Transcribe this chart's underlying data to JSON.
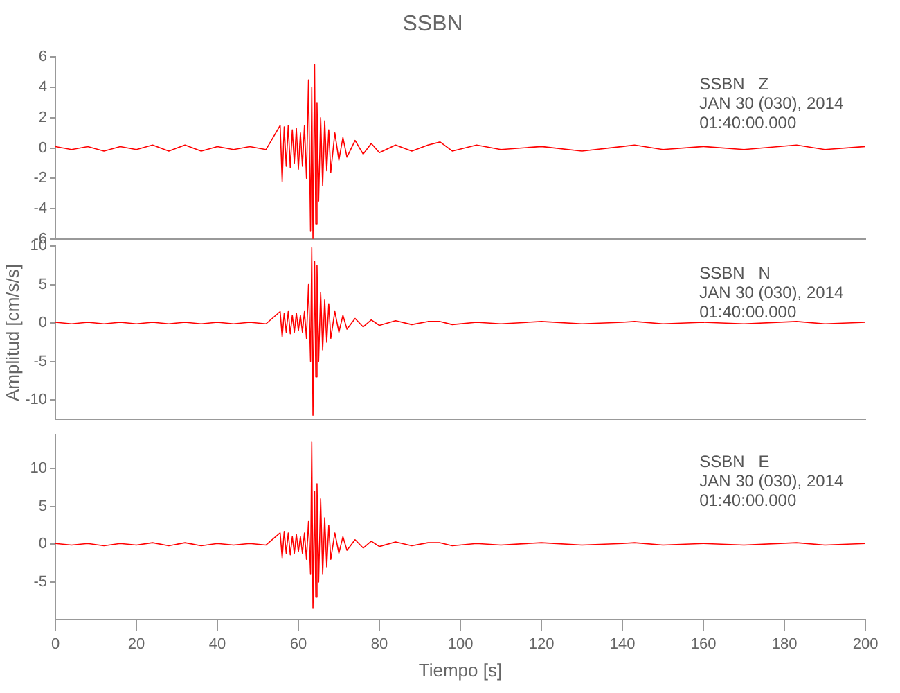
{
  "chart_data": [
    {
      "type": "line",
      "title": "SSBN",
      "annotations": [
        "SSBN   Z",
        "JAN 30 (030), 2014",
        "01:40:00.000"
      ],
      "tick_labels": "y",
      "color": "#ff0000",
      "x": [
        0,
        4,
        8,
        12,
        16,
        20,
        24,
        28,
        32,
        36,
        40,
        44,
        48,
        52,
        55.5,
        56,
        56.5,
        57,
        57.5,
        58,
        58.5,
        59,
        59.5,
        60,
        60.5,
        61,
        61.5,
        62,
        62.5,
        63,
        63.3,
        63.6,
        64,
        64.3,
        64.6,
        65,
        65.5,
        66,
        66.5,
        67,
        67.5,
        68,
        69,
        70,
        71,
        72,
        74,
        76,
        78,
        80,
        84,
        88,
        92,
        95,
        98,
        104,
        110,
        120,
        130,
        140,
        143,
        150,
        160,
        170,
        183,
        190,
        200
      ],
      "values": [
        0.1,
        -0.1,
        0.1,
        -0.2,
        0.1,
        -0.1,
        0.2,
        -0.2,
        0.2,
        -0.2,
        0.1,
        -0.1,
        0.1,
        -0.1,
        1.5,
        -2.2,
        1.4,
        -1.2,
        1.5,
        -1.3,
        1.2,
        -1.0,
        1.3,
        -1.4,
        1.0,
        -1.2,
        1.5,
        -2.0,
        4.5,
        -5.5,
        4.0,
        -6.0,
        5.5,
        -5.0,
        3.0,
        -3.5,
        2.0,
        -2.5,
        1.8,
        -1.5,
        1.2,
        -1.6,
        1.0,
        -0.8,
        0.7,
        -0.6,
        0.5,
        -0.4,
        0.3,
        -0.3,
        0.2,
        -0.2,
        0.2,
        0.4,
        -0.2,
        0.2,
        -0.1,
        0.1,
        -0.2,
        0.1,
        0.2,
        -0.1,
        0.1,
        -0.1,
        0.2,
        -0.1,
        0.1
      ],
      "xlim": [
        0,
        200
      ],
      "xticks": [
        0,
        20,
        40,
        60,
        80,
        100,
        120,
        140,
        160,
        180,
        200
      ],
      "ylim": [
        -6,
        6
      ],
      "yticks": [
        -6,
        -4,
        -2,
        0,
        2,
        4,
        6
      ]
    },
    {
      "type": "line",
      "ylabel": "Amplitud [cm/s/s]",
      "annotations": [
        "SSBN   N",
        "JAN 30 (030), 2014",
        "01:40:00.000"
      ],
      "tick_labels": "y",
      "color": "#ff0000",
      "x": [
        0,
        4,
        8,
        12,
        16,
        20,
        24,
        28,
        32,
        36,
        40,
        44,
        48,
        52,
        55.5,
        56,
        56.5,
        57,
        57.5,
        58,
        58.5,
        59,
        59.5,
        60,
        60.5,
        61,
        61.5,
        62,
        62.5,
        63,
        63.3,
        63.6,
        64,
        64.3,
        64.6,
        65,
        65.5,
        66,
        66.5,
        67,
        67.5,
        68,
        69,
        70,
        71,
        72,
        74,
        76,
        78,
        80,
        84,
        88,
        92,
        95,
        98,
        104,
        110,
        120,
        130,
        140,
        143,
        150,
        160,
        170,
        183,
        190,
        200
      ],
      "values": [
        0.1,
        -0.1,
        0.1,
        -0.1,
        0.1,
        -0.1,
        0.1,
        -0.1,
        0.1,
        -0.1,
        0.1,
        -0.1,
        0.1,
        -0.1,
        1.5,
        -1.8,
        1.3,
        -1.2,
        1.5,
        -1.4,
        1.0,
        -1.2,
        1.3,
        -1.0,
        1.0,
        -1.2,
        1.5,
        -2.0,
        5,
        -5,
        9.8,
        -12,
        8,
        -7,
        7.5,
        -5,
        4,
        -3.5,
        3,
        -2.5,
        2.5,
        -2,
        1.5,
        -1.2,
        1.0,
        -0.8,
        0.6,
        -0.5,
        0.4,
        -0.3,
        0.3,
        -0.2,
        0.2,
        0.2,
        -0.2,
        0.1,
        -0.1,
        0.2,
        -0.1,
        0.1,
        0.2,
        -0.1,
        0.1,
        -0.1,
        0.2,
        -0.1,
        0.1
      ],
      "xlim": [
        0,
        200
      ],
      "xticks": [
        0,
        20,
        40,
        60,
        80,
        100,
        120,
        140,
        160,
        180,
        200
      ],
      "ylim": [
        -12.5,
        10
      ],
      "yticks": [
        -10,
        -5,
        0,
        5,
        10
      ]
    },
    {
      "type": "line",
      "xlabel": "Tiempo [s]",
      "annotations": [
        "SSBN   E",
        "JAN 30 (030), 2014",
        "01:40:00.000"
      ],
      "color": "#ff0000",
      "x": [
        0,
        4,
        8,
        12,
        16,
        20,
        24,
        28,
        32,
        36,
        40,
        44,
        48,
        52,
        55.5,
        56,
        56.5,
        57,
        57.5,
        58,
        58.5,
        59,
        59.5,
        60,
        60.5,
        61,
        61.5,
        62,
        62.5,
        63,
        63.3,
        63.6,
        64,
        64.3,
        64.6,
        65,
        65.5,
        66,
        66.5,
        67,
        67.5,
        68,
        69,
        70,
        71,
        72,
        74,
        76,
        78,
        80,
        84,
        88,
        92,
        95,
        98,
        104,
        110,
        120,
        130,
        140,
        143,
        150,
        160,
        170,
        183,
        190,
        200
      ],
      "values": [
        0.1,
        -0.1,
        0.1,
        -0.2,
        0.1,
        -0.1,
        0.2,
        -0.2,
        0.2,
        -0.2,
        0.1,
        -0.1,
        0.1,
        -0.1,
        1.5,
        -1.8,
        1.7,
        -1.2,
        1.5,
        -1.4,
        1.0,
        -1.2,
        1.3,
        -1.0,
        1.0,
        -1.2,
        1.5,
        -2.0,
        3,
        -4,
        13.5,
        -8.5,
        7,
        -7,
        8,
        -5,
        6,
        -4,
        3.5,
        -3,
        2.5,
        -2,
        1.5,
        -1.2,
        1.0,
        -0.8,
        0.6,
        -0.5,
        0.4,
        -0.3,
        0.3,
        -0.2,
        0.2,
        0.2,
        -0.2,
        0.1,
        -0.1,
        0.2,
        -0.1,
        0.1,
        0.2,
        -0.1,
        0.1,
        -0.1,
        0.2,
        -0.1,
        0.1
      ],
      "xlim": [
        0,
        200
      ],
      "xticks": [
        0,
        20,
        40,
        60,
        80,
        100,
        120,
        140,
        160,
        180,
        200
      ],
      "ylim": [
        -10,
        14.5
      ],
      "yticks": [
        -5,
        0,
        5,
        10
      ]
    }
  ]
}
